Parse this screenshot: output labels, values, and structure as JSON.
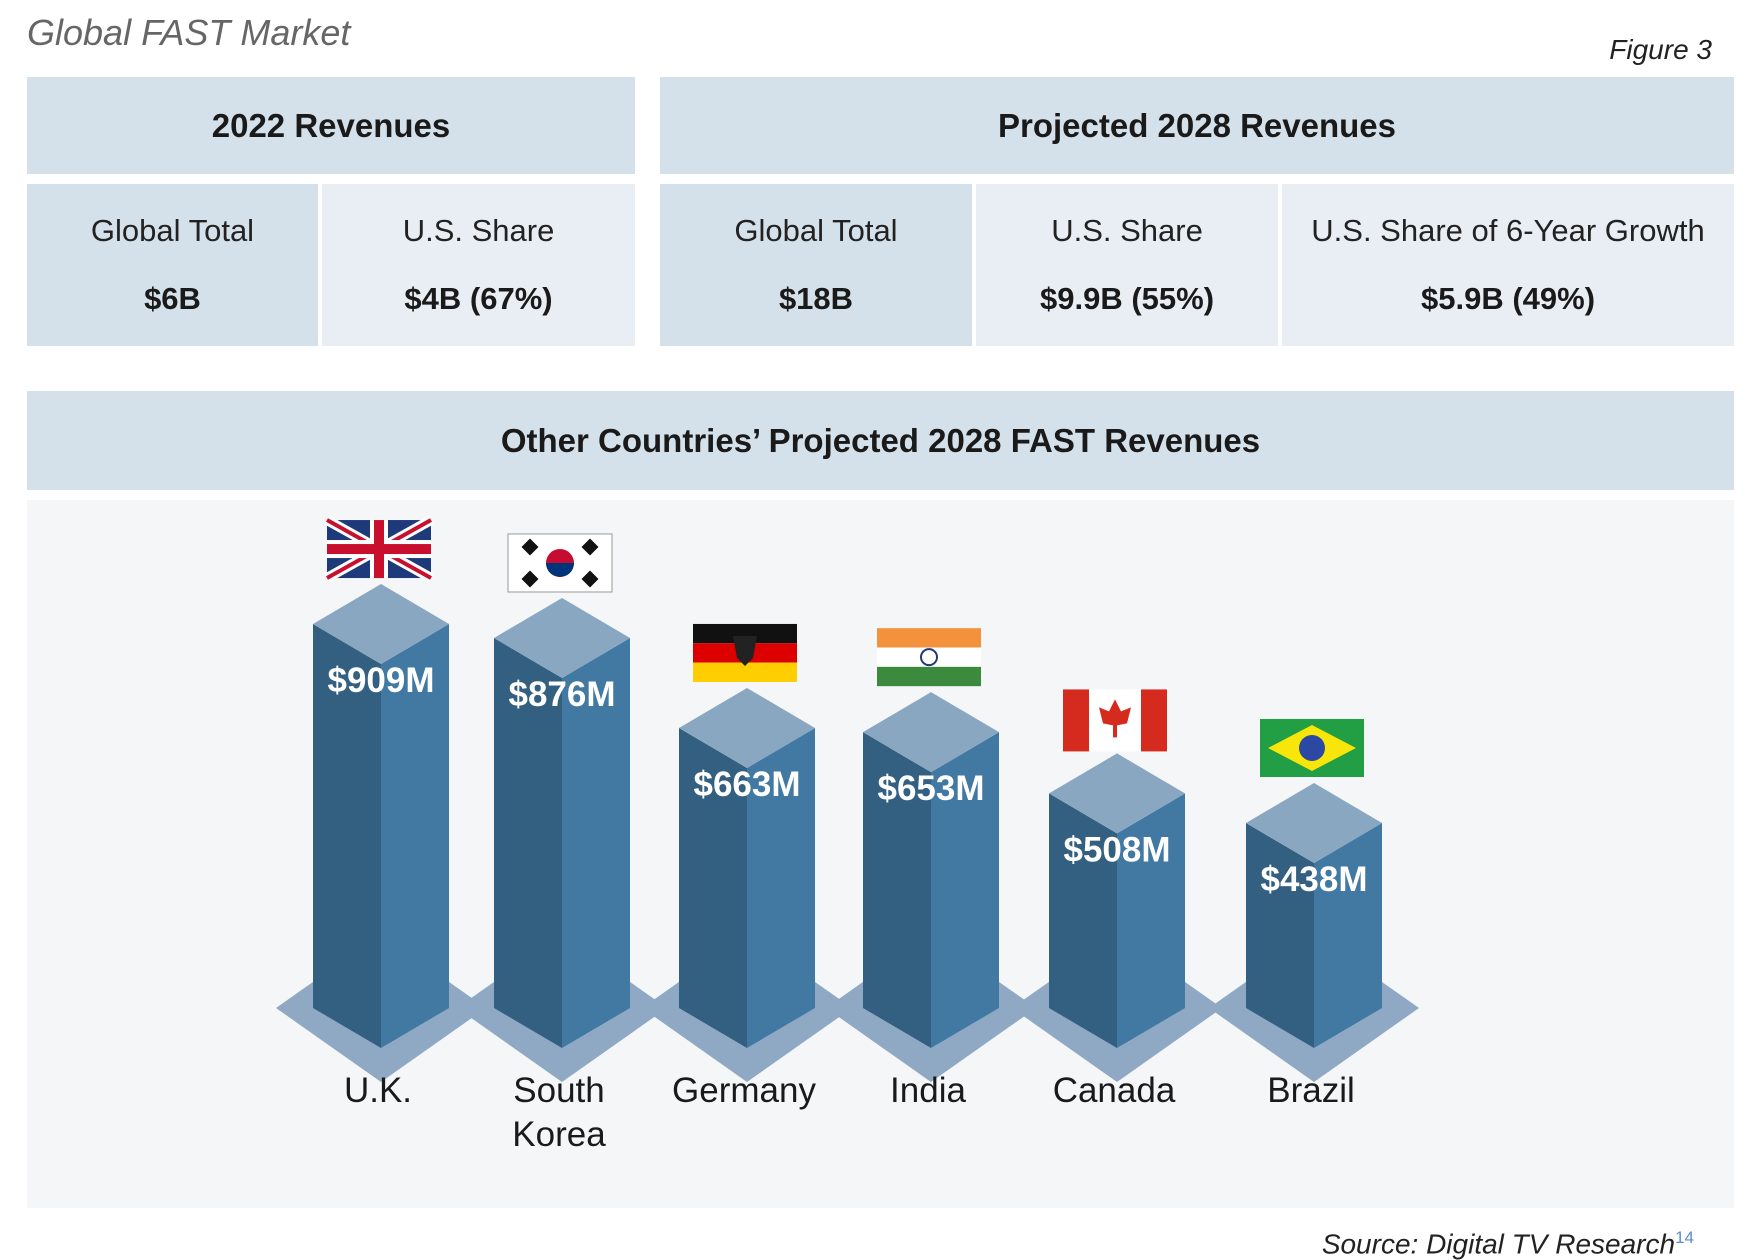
{
  "header": {
    "title": "Global FAST Market",
    "figure": "Figure 3"
  },
  "revenues_2022": {
    "heading": "2022 Revenues",
    "cells": [
      {
        "label": "Global Total",
        "value": "$6B"
      },
      {
        "label": "U.S. Share",
        "value": "$4B (67%)"
      }
    ]
  },
  "revenues_2028": {
    "heading": "Projected 2028 Revenues",
    "cells": [
      {
        "label": "Global Total",
        "value": "$18B"
      },
      {
        "label": "U.S. Share",
        "value": "$9.9B (55%)"
      },
      {
        "label": "U.S. Share of 6-Year Growth",
        "value": "$5.9B (49%)"
      }
    ]
  },
  "colors": {
    "panel_dark": "#d5e1ea",
    "panel_light": "#e8eef3",
    "bar_left": "#335f80",
    "bar_right": "#4279a3",
    "bar_top": "#8aa7c2",
    "base": "#8fa9c4"
  },
  "chart_data": {
    "type": "bar",
    "title": "Other Countries’ Projected 2028 FAST Revenues",
    "categories": [
      "U.K.",
      "South Korea",
      "Germany",
      "India",
      "Canada",
      "Brazil"
    ],
    "category_lines": [
      [
        "U.K."
      ],
      [
        "South",
        "Korea"
      ],
      [
        "Germany"
      ],
      [
        "India"
      ],
      [
        "Canada"
      ],
      [
        "Brazil"
      ]
    ],
    "values": [
      909,
      876,
      663,
      653,
      508,
      438
    ],
    "value_labels": [
      "$909M",
      "$876M",
      "$663M",
      "$653M",
      "$508M",
      "$438M"
    ],
    "flags": [
      "uk-flag-icon",
      "south-korea-flag-icon",
      "germany-flag-icon",
      "india-flag-icon",
      "canada-flag-icon",
      "brazil-flag-icon"
    ],
    "unit": "$M",
    "grid": false
  },
  "footer": {
    "source": "Source: Digital TV Research",
    "footnote": "14"
  }
}
